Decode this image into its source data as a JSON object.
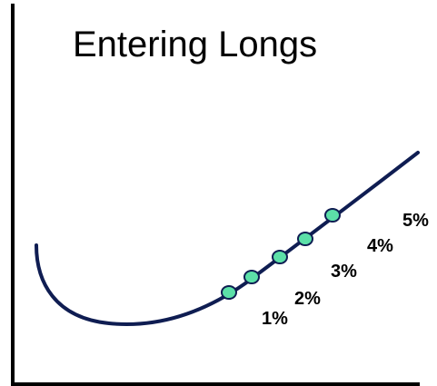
{
  "title": "Entering Longs",
  "colors": {
    "axis": "#000000",
    "curve": "#0f1d52",
    "marker_fill": "#5ce0a8",
    "marker_stroke": "#0f1d52",
    "background": "#ffffff"
  },
  "entries": [
    {
      "label": "1%"
    },
    {
      "label": "2%"
    },
    {
      "label": "3%"
    },
    {
      "label": "4%"
    },
    {
      "label": "5%"
    }
  ]
}
